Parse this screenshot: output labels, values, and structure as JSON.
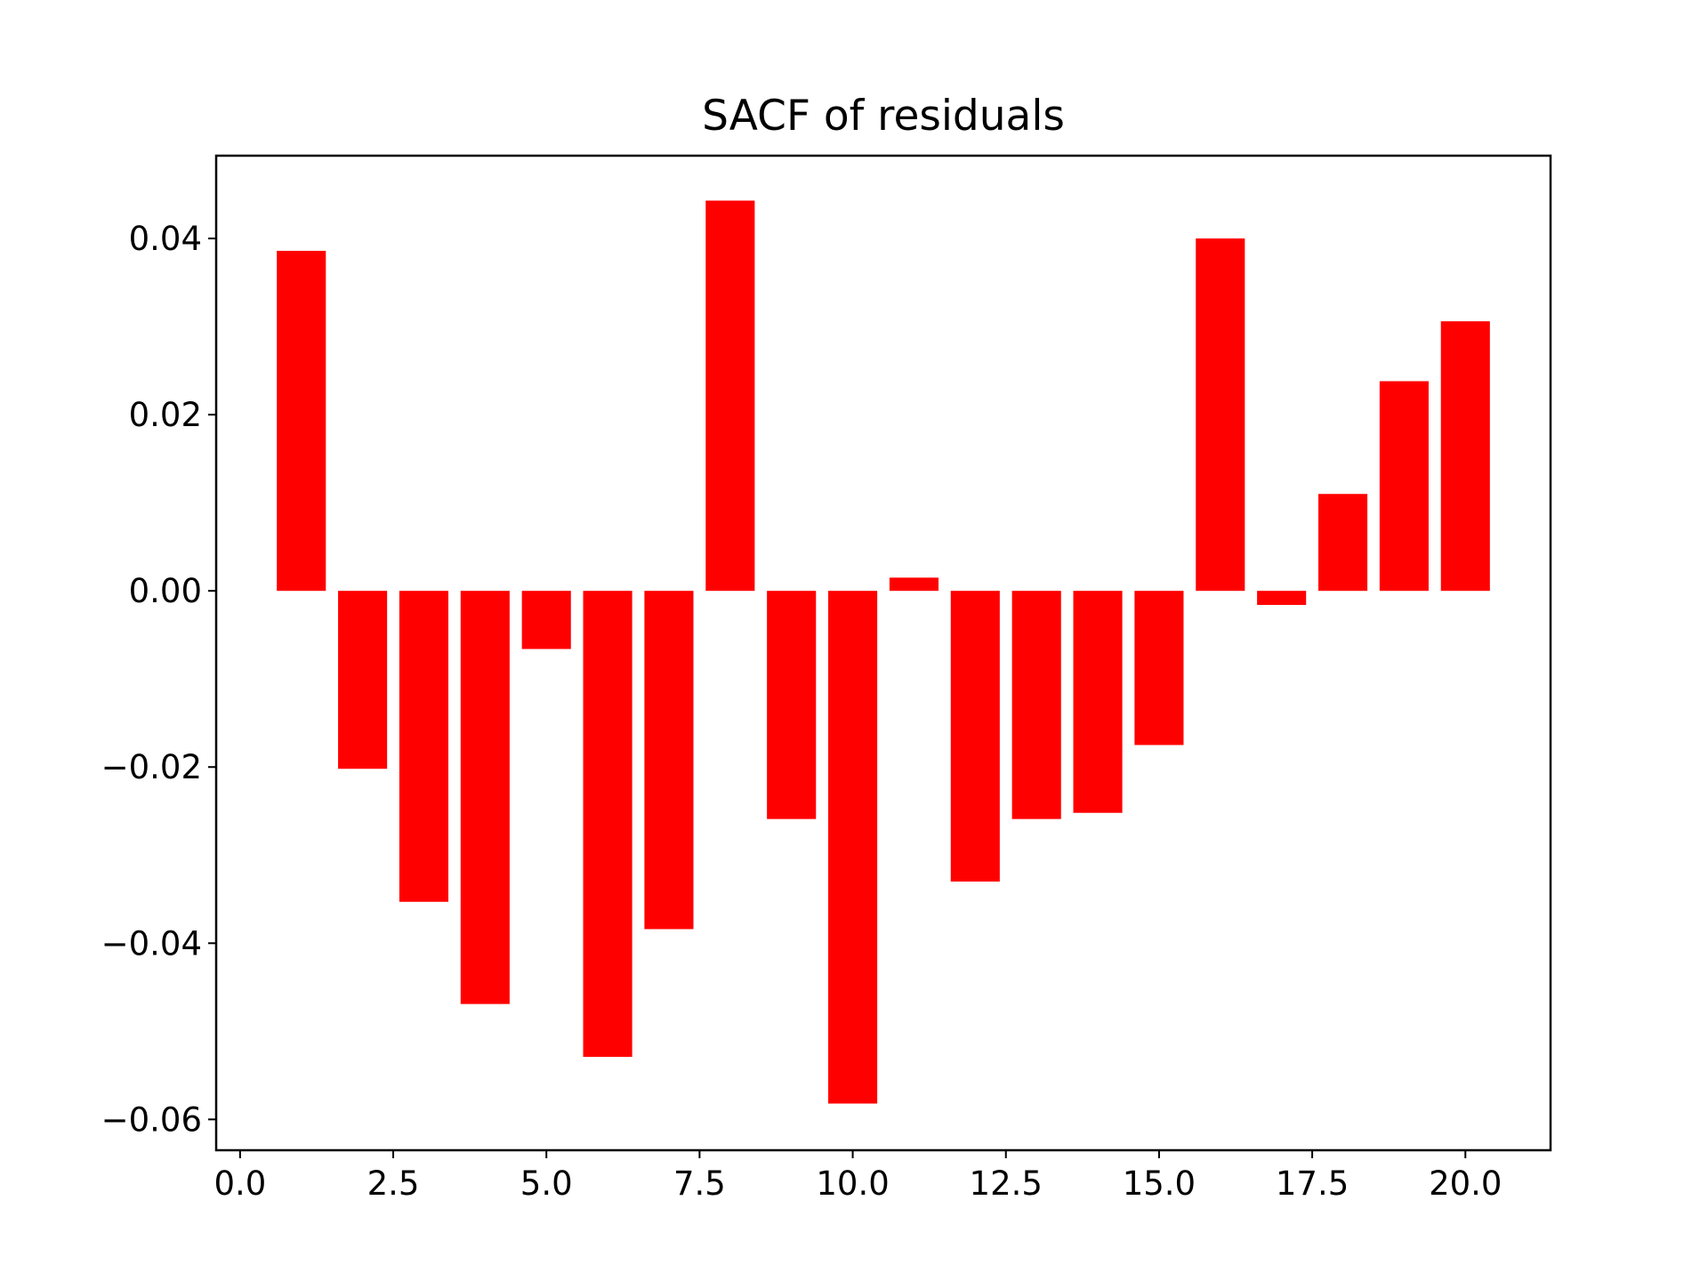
{
  "chart_data": {
    "type": "bar",
    "title": "SACF of residuals",
    "xlabel": "",
    "ylabel": "",
    "x": [
      1,
      2,
      3,
      4,
      5,
      6,
      7,
      8,
      9,
      10,
      11,
      12,
      13,
      14,
      15,
      16,
      17,
      18,
      19,
      20
    ],
    "values": [
      0.0386,
      -0.0202,
      -0.0353,
      -0.0469,
      -0.0066,
      -0.0529,
      -0.0384,
      0.0443,
      -0.0259,
      -0.0582,
      0.0015,
      -0.033,
      -0.0259,
      -0.0252,
      -0.0175,
      0.04,
      -0.0016,
      0.011,
      0.0238,
      0.0306
    ],
    "bar_width": 0.8,
    "bar_color": "#ff0000",
    "xlim": [
      -0.39,
      21.39
    ],
    "ylim": [
      -0.0635,
      0.0494
    ],
    "xticks": [
      0.0,
      2.5,
      5.0,
      7.5,
      10.0,
      12.5,
      15.0,
      17.5,
      20.0
    ],
    "xtick_labels": [
      "0.0",
      "2.5",
      "5.0",
      "7.5",
      "10.0",
      "12.5",
      "15.0",
      "17.5",
      "20.0"
    ],
    "yticks": [
      0.04,
      0.02,
      0.0,
      -0.02,
      -0.04,
      -0.06
    ],
    "ytick_labels": [
      "0.04",
      "0.02",
      "0.00",
      "−0.02",
      "−0.04",
      "−0.06"
    ],
    "grid": false,
    "legend": "none"
  }
}
